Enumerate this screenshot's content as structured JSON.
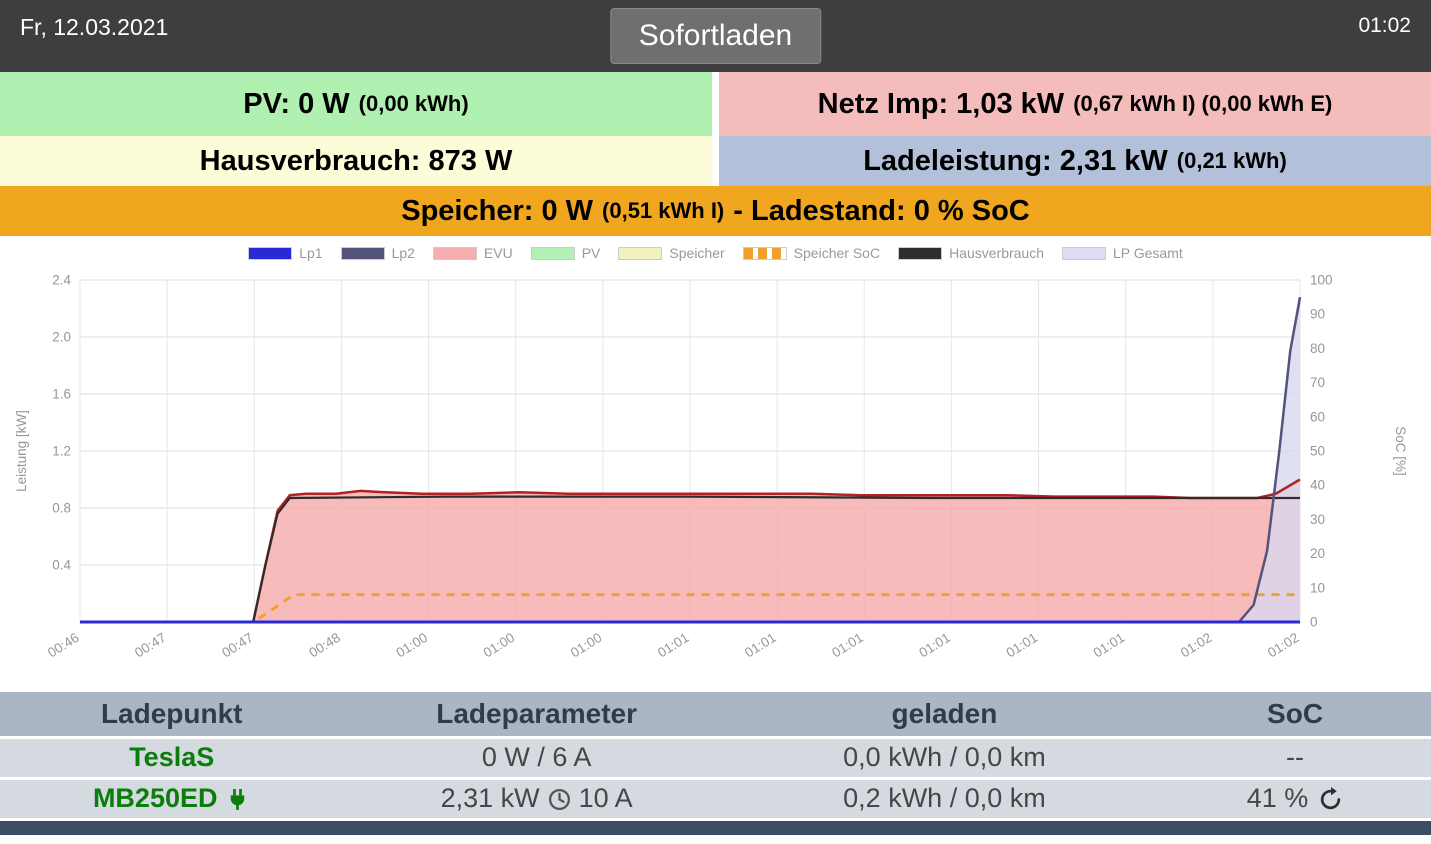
{
  "topbar": {
    "date": "Fr, 12.03.2021",
    "mode_button": "Sofortladen",
    "time": "01:02"
  },
  "tiles": {
    "pv": {
      "main": "PV: 0 W",
      "detail": "(0,00 kWh)"
    },
    "netz": {
      "main": "Netz Imp: 1,03 kW",
      "detail": "(0,67 kWh I) (0,00 kWh E)"
    },
    "haus": {
      "main": "Hausverbrauch: 873 W",
      "detail": ""
    },
    "lade": {
      "main": "Ladeleistung: 2,31 kW",
      "detail": "(0,21 kWh)"
    },
    "speicher": {
      "main": "Speicher: 0 W",
      "detail": "(0,51 kWh I)",
      "suffix": "- Ladestand: 0 % SoC"
    }
  },
  "chart_data": {
    "type": "line",
    "title": "",
    "legend_position": "top",
    "x_tick_labels": [
      "00:46",
      "00:47",
      "00:47",
      "00:48",
      "01:00",
      "01:00",
      "01:00",
      "01:01",
      "01:01",
      "01:01",
      "01:01",
      "01:01",
      "01:01",
      "01:02",
      "01:02"
    ],
    "left_axis": {
      "label": "Leistung [kW]",
      "min": 0,
      "max": 2.4,
      "ticks": [
        0.4,
        0.8,
        1.2,
        1.6,
        2.0,
        2.4
      ]
    },
    "right_axis": {
      "label": "SoC [%]",
      "min": 0,
      "max": 100,
      "ticks": [
        0,
        10,
        20,
        30,
        40,
        50,
        60,
        70,
        80,
        90,
        100
      ]
    },
    "grid": true,
    "legend": [
      {
        "label": "Lp1",
        "swatch": "#2929d6",
        "dashed": false
      },
      {
        "label": "Lp2",
        "swatch": "#53537c",
        "dashed": false
      },
      {
        "label": "EVU",
        "swatch": "#f5adad",
        "dashed": false
      },
      {
        "label": "PV",
        "swatch": "#b3f0b3",
        "dashed": false
      },
      {
        "label": "Speicher",
        "swatch": "#f2f2c0",
        "dashed": false
      },
      {
        "label": "Speicher SoC",
        "swatch": "#f0a030",
        "dashed": true
      },
      {
        "label": "Hausverbrauch",
        "swatch": "#2d2d2d",
        "dashed": false
      },
      {
        "label": "LP Gesamt",
        "swatch": "#dcdcf5",
        "dashed": false
      }
    ],
    "series": [
      {
        "name": "EVU",
        "axis": "left",
        "color": "#b22222",
        "w": 2.5,
        "fill": "#f5aaaa",
        "fill_opacity": 0.8,
        "dash": false,
        "points": [
          [
            0,
            0
          ],
          [
            14.2,
            0
          ],
          [
            15.2,
            0.4
          ],
          [
            16.2,
            0.78
          ],
          [
            17.2,
            0.89
          ],
          [
            18.5,
            0.9
          ],
          [
            21,
            0.9
          ],
          [
            23,
            0.92
          ],
          [
            25,
            0.91
          ],
          [
            28,
            0.9
          ],
          [
            32,
            0.9
          ],
          [
            36,
            0.91
          ],
          [
            40,
            0.9
          ],
          [
            44,
            0.9
          ],
          [
            48,
            0.9
          ],
          [
            52,
            0.9
          ],
          [
            56,
            0.9
          ],
          [
            60,
            0.9
          ],
          [
            64,
            0.89
          ],
          [
            68,
            0.89
          ],
          [
            72,
            0.89
          ],
          [
            76,
            0.89
          ],
          [
            80,
            0.88
          ],
          [
            84,
            0.88
          ],
          [
            88,
            0.88
          ],
          [
            91,
            0.87
          ],
          [
            94,
            0.87
          ],
          [
            96.5,
            0.87
          ],
          [
            98,
            0.9
          ],
          [
            100,
            1.0
          ]
        ]
      },
      {
        "name": "PV",
        "axis": "left",
        "color": "#5cb85c",
        "w": 1.5,
        "fill": "#b3f0b3",
        "fill_opacity": 0.6,
        "dash": false,
        "points": [
          [
            0,
            0
          ],
          [
            100,
            0
          ]
        ]
      },
      {
        "name": "Speicher",
        "axis": "left",
        "color": "#e6e696",
        "w": 1.5,
        "fill": null,
        "fill_opacity": 0,
        "dash": false,
        "points": [
          [
            0,
            0
          ],
          [
            100,
            0
          ]
        ]
      },
      {
        "name": "LP Gesamt",
        "axis": "left",
        "color": "#8c8cd0",
        "w": 1.5,
        "fill": "#d8d8f0",
        "fill_opacity": 0.8,
        "dash": false,
        "points": [
          [
            0,
            0
          ],
          [
            95,
            0
          ],
          [
            96.2,
            0.12
          ],
          [
            97.3,
            0.5
          ],
          [
            98.3,
            1.2
          ],
          [
            99.2,
            1.9
          ],
          [
            100,
            2.25
          ]
        ]
      },
      {
        "name": "Hausverbrauch",
        "axis": "left",
        "color": "#2d2d2d",
        "w": 2.2,
        "fill": null,
        "fill_opacity": 0,
        "dash": false,
        "points": [
          [
            0,
            0
          ],
          [
            14.2,
            0
          ],
          [
            15.2,
            0.4
          ],
          [
            16.2,
            0.76
          ],
          [
            17.2,
            0.87
          ],
          [
            30,
            0.88
          ],
          [
            50,
            0.88
          ],
          [
            70,
            0.87
          ],
          [
            90,
            0.87
          ],
          [
            100,
            0.87
          ]
        ]
      },
      {
        "name": "Speicher SoC",
        "axis": "right",
        "color": "#f0a030",
        "w": 3,
        "fill": null,
        "fill_opacity": 0,
        "dash": true,
        "points": [
          [
            0,
            0
          ],
          [
            14.2,
            0
          ],
          [
            15.5,
            3
          ],
          [
            17.5,
            8
          ],
          [
            40,
            8
          ],
          [
            70,
            8
          ],
          [
            100,
            8
          ]
        ]
      },
      {
        "name": "Lp2",
        "axis": "left",
        "color": "#53537c",
        "w": 2.5,
        "fill": null,
        "fill_opacity": 0,
        "dash": false,
        "points": [
          [
            0,
            0
          ],
          [
            95,
            0
          ],
          [
            96.2,
            0.12
          ],
          [
            97.3,
            0.5
          ],
          [
            98.3,
            1.2
          ],
          [
            99.2,
            1.9
          ],
          [
            100,
            2.28
          ]
        ]
      },
      {
        "name": "Lp1",
        "axis": "left",
        "color": "#2929d6",
        "w": 3,
        "fill": null,
        "fill_opacity": 0,
        "dash": false,
        "points": [
          [
            0,
            0
          ],
          [
            100,
            0
          ]
        ]
      }
    ]
  },
  "table": {
    "headers": [
      "Ladepunkt",
      "Ladeparameter",
      "geladen",
      "SoC"
    ],
    "rows": [
      {
        "name": "TeslaS",
        "has_plug_icon": false,
        "param_pre": "0 W / 6 A",
        "has_clock_icon": false,
        "param_post": "",
        "charged": "0,0 kWh / 0,0 km",
        "soc": "--",
        "has_refresh_icon": false
      },
      {
        "name": "MB250ED",
        "has_plug_icon": true,
        "param_pre": "2,31 kW",
        "has_clock_icon": true,
        "param_post": "10 A",
        "charged": "0,2 kWh / 0,0 km",
        "soc": "41 %",
        "has_refresh_icon": true
      }
    ]
  }
}
